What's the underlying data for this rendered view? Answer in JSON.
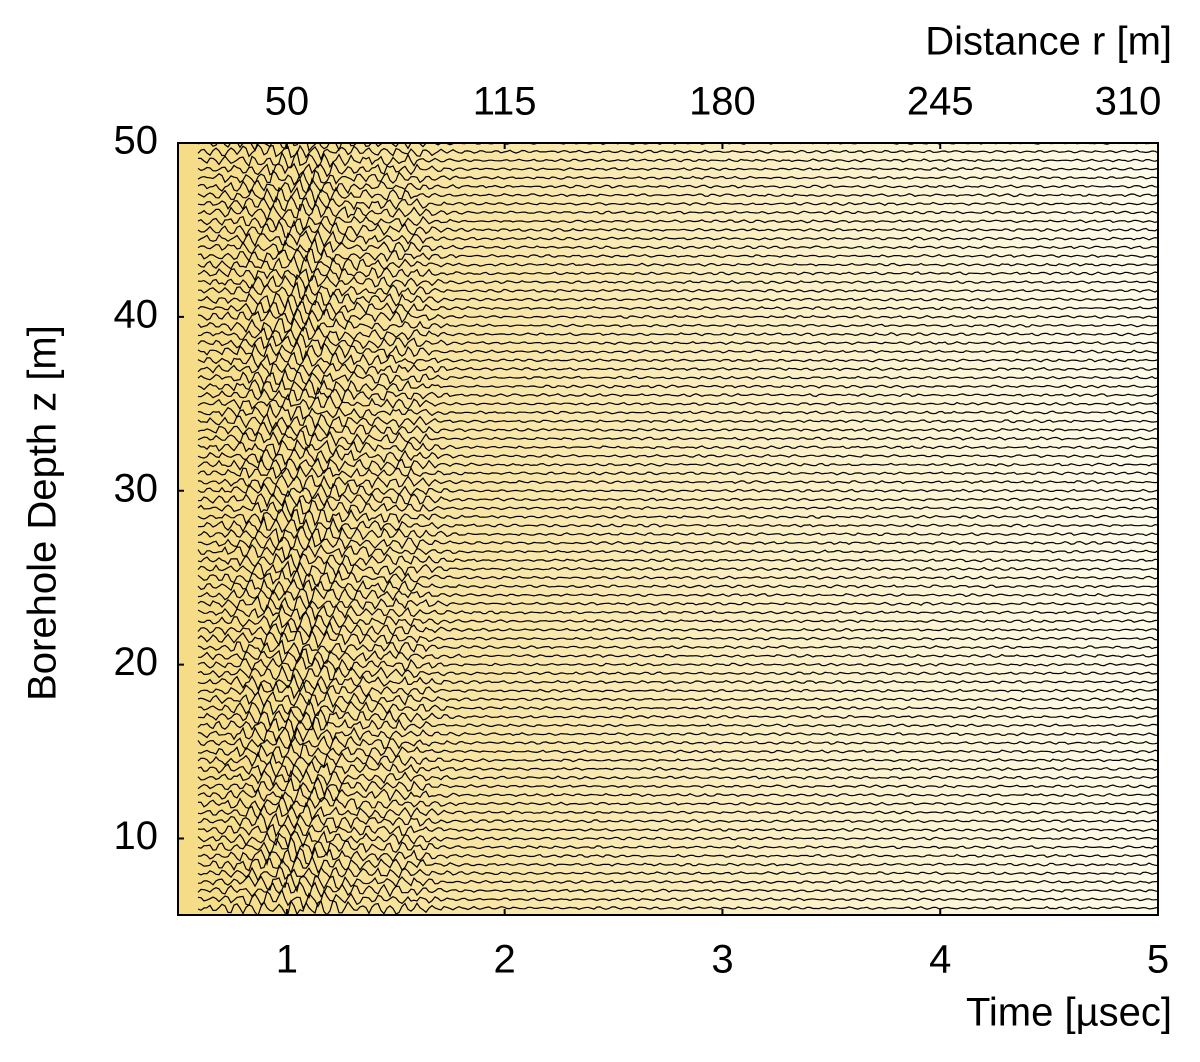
{
  "chart_data": {
    "type": "wiggle",
    "xlabel": "Time [µsec]",
    "x2label": "Distance r [m]",
    "ylabel": "Borehole Depth z [m]",
    "xlim": [
      0.5,
      5
    ],
    "xticks": [
      1,
      2,
      3,
      4,
      5
    ],
    "x2lim": [
      17.5,
      310
    ],
    "x2ticks": [
      50,
      115,
      180,
      245,
      310
    ],
    "ylim": [
      5.6,
      50
    ],
    "yticks": [
      10,
      20,
      30,
      40,
      50
    ],
    "color": "#000000",
    "background": [
      "#f6dc86",
      "#fffcec"
    ],
    "traces": [
      50,
      49.5,
      49,
      48.5,
      48,
      47.5,
      47,
      46.5,
      46,
      45.5,
      45,
      44.5,
      44,
      43.5,
      43,
      42.5,
      42,
      41.5,
      41,
      40.5,
      40,
      39.5,
      39,
      38.5,
      38,
      37.5,
      37,
      36.5,
      36,
      35.5,
      35,
      34.5,
      34,
      33.5,
      33,
      32.5,
      32,
      31.5,
      31,
      30.5,
      30,
      29.5,
      29,
      28.5,
      28,
      27.5,
      27,
      26.5,
      26,
      25.5,
      25,
      24.5,
      24,
      23.5,
      23,
      22.5,
      22,
      21.5,
      21,
      20.5,
      20,
      19.5,
      19,
      18.5,
      18,
      17.5,
      17,
      16.5,
      16,
      15.5,
      15,
      14.5,
      14,
      13.5,
      13,
      12.5,
      12,
      11.5,
      11,
      10.5,
      10,
      9.5,
      9,
      8.5,
      8,
      7.5,
      7,
      6.5,
      6
    ]
  }
}
